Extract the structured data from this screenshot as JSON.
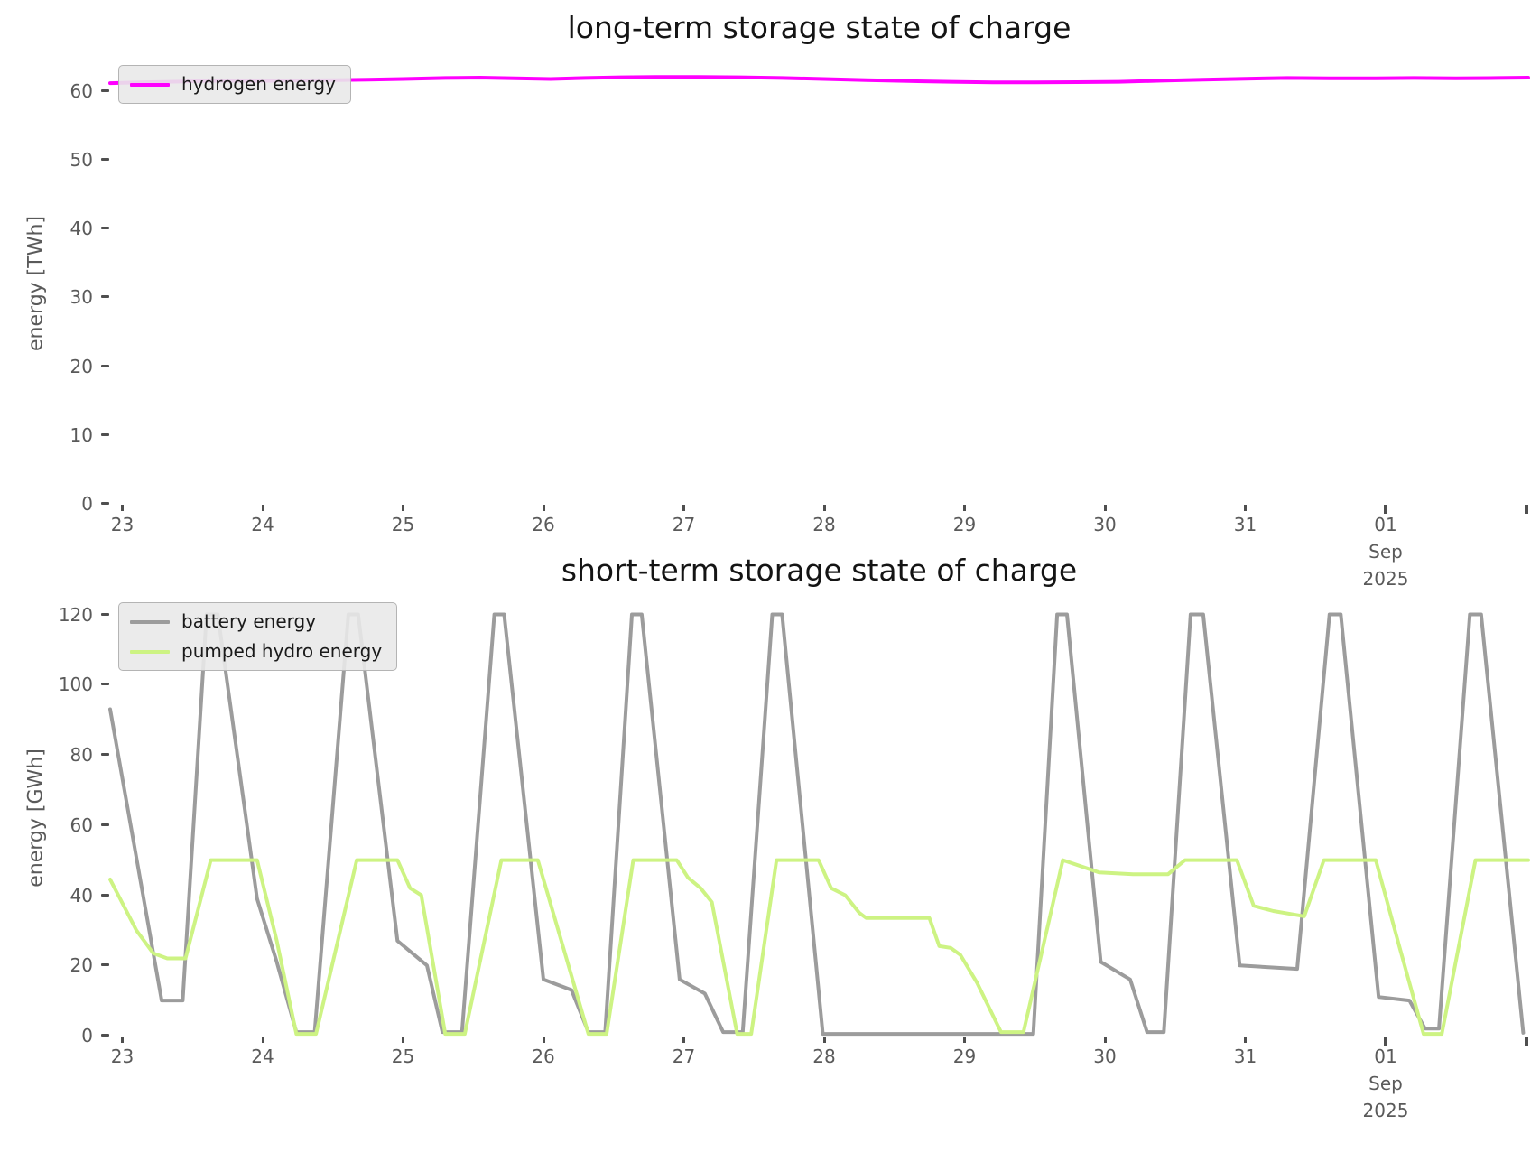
{
  "figure": {
    "background": "#ffffff",
    "text_color": "#141414",
    "tick_color": "#5a5a5a"
  },
  "chart_data": [
    {
      "id": "long",
      "type": "line",
      "title": "long-term storage state of charge",
      "ylabel": "energy [TWh]",
      "xlabel": "",
      "ylim": [
        0,
        64
      ],
      "xlim": [
        -0.087,
        10.016
      ],
      "grid": false,
      "legend_position": "upper-left",
      "yticks": [
        0,
        10,
        20,
        30,
        40,
        50,
        60
      ],
      "xticks": [
        {
          "label": "23"
        },
        {
          "label": "24"
        },
        {
          "label": "25"
        },
        {
          "label": "26"
        },
        {
          "label": "27"
        },
        {
          "label": "28"
        },
        {
          "label": "29"
        },
        {
          "label": "30"
        },
        {
          "label": "31"
        },
        {
          "label": "01",
          "sublabels": [
            "Sep",
            "2025"
          ],
          "major": true
        },
        {
          "label": "",
          "major": true
        }
      ],
      "x_unit": "days, 23 Aug 2025 to 02 Sep 2025",
      "series": [
        {
          "name": "hydrogen energy",
          "color": "#ff00ff",
          "line_width": 4,
          "points": [
            [
              -0.087,
              61.1
            ],
            [
              0.2,
              61.25
            ],
            [
              0.45,
              61.35
            ],
            [
              0.7,
              61.45
            ],
            [
              0.95,
              61.4
            ],
            [
              1.2,
              61.5
            ],
            [
              1.5,
              61.55
            ],
            [
              1.75,
              61.6
            ],
            [
              2.0,
              61.7
            ],
            [
              2.3,
              61.85
            ],
            [
              2.55,
              61.9
            ],
            [
              2.8,
              61.8
            ],
            [
              3.05,
              61.7
            ],
            [
              3.3,
              61.85
            ],
            [
              3.55,
              61.95
            ],
            [
              3.8,
              62.0
            ],
            [
              4.1,
              62.0
            ],
            [
              4.4,
              61.95
            ],
            [
              4.7,
              61.85
            ],
            [
              5.0,
              61.7
            ],
            [
              5.3,
              61.55
            ],
            [
              5.6,
              61.4
            ],
            [
              5.9,
              61.3
            ],
            [
              6.2,
              61.2
            ],
            [
              6.5,
              61.2
            ],
            [
              6.8,
              61.25
            ],
            [
              7.1,
              61.3
            ],
            [
              7.4,
              61.45
            ],
            [
              7.7,
              61.6
            ],
            [
              8.0,
              61.75
            ],
            [
              8.3,
              61.85
            ],
            [
              8.6,
              61.8
            ],
            [
              8.9,
              61.8
            ],
            [
              9.2,
              61.85
            ],
            [
              9.5,
              61.8
            ],
            [
              9.8,
              61.85
            ],
            [
              10.016,
              61.9
            ]
          ]
        }
      ]
    },
    {
      "id": "short",
      "type": "line",
      "title": "short-term storage state of charge",
      "ylabel": "energy [GWh]",
      "xlabel": "",
      "ylim": [
        0,
        124
      ],
      "xlim": [
        -0.087,
        10.016
      ],
      "grid": false,
      "legend_position": "upper-left",
      "yticks": [
        0,
        20,
        40,
        60,
        80,
        100,
        120
      ],
      "xticks": [
        {
          "label": "23"
        },
        {
          "label": "24"
        },
        {
          "label": "25"
        },
        {
          "label": "26"
        },
        {
          "label": "27"
        },
        {
          "label": "28"
        },
        {
          "label": "29"
        },
        {
          "label": "30"
        },
        {
          "label": "31"
        },
        {
          "label": "01",
          "sublabels": [
            "Sep",
            "2025"
          ],
          "major": true
        },
        {
          "label": "",
          "major": true
        }
      ],
      "x_unit": "days, 23 Aug 2025 to 02 Sep 2025",
      "series": [
        {
          "name": "battery energy",
          "color": "#9c9c9c",
          "line_width": 4,
          "points": [
            [
              -0.087,
              93
            ],
            [
              0.28,
              10
            ],
            [
              0.43,
              10
            ],
            [
              0.6,
              120
            ],
            [
              0.68,
              120
            ],
            [
              0.96,
              39
            ],
            [
              1.1,
              21
            ],
            [
              1.24,
              1
            ],
            [
              1.37,
              1
            ],
            [
              1.61,
              120
            ],
            [
              1.68,
              120
            ],
            [
              1.96,
              27
            ],
            [
              2.17,
              20
            ],
            [
              2.28,
              1
            ],
            [
              2.42,
              1
            ],
            [
              2.65,
              120
            ],
            [
              2.72,
              120
            ],
            [
              3.0,
              16
            ],
            [
              3.2,
              13
            ],
            [
              3.32,
              1
            ],
            [
              3.44,
              1
            ],
            [
              3.63,
              120
            ],
            [
              3.7,
              120
            ],
            [
              3.97,
              16
            ],
            [
              4.15,
              12
            ],
            [
              4.28,
              1
            ],
            [
              4.42,
              1
            ],
            [
              4.63,
              120
            ],
            [
              4.7,
              120
            ],
            [
              4.99,
              0.5
            ],
            [
              6.49,
              0.5
            ],
            [
              6.66,
              120
            ],
            [
              6.73,
              120
            ],
            [
              6.97,
              21
            ],
            [
              7.18,
              16
            ],
            [
              7.3,
              1
            ],
            [
              7.42,
              1
            ],
            [
              7.61,
              120
            ],
            [
              7.7,
              120
            ],
            [
              7.96,
              20
            ],
            [
              8.37,
              19
            ],
            [
              8.6,
              120
            ],
            [
              8.68,
              120
            ],
            [
              8.95,
              11
            ],
            [
              9.17,
              10
            ],
            [
              9.28,
              2
            ],
            [
              9.38,
              2
            ],
            [
              9.6,
              120
            ],
            [
              9.68,
              120
            ],
            [
              9.98,
              0.8
            ]
          ]
        },
        {
          "name": "pumped hydro energy",
          "color": "#cdf383",
          "line_width": 4,
          "points": [
            [
              -0.087,
              44.5
            ],
            [
              0.1,
              30
            ],
            [
              0.22,
              23.5
            ],
            [
              0.32,
              22
            ],
            [
              0.45,
              22
            ],
            [
              0.63,
              50
            ],
            [
              0.96,
              50
            ],
            [
              1.1,
              27
            ],
            [
              1.24,
              0.5
            ],
            [
              1.38,
              0.5
            ],
            [
              1.67,
              50
            ],
            [
              1.96,
              50
            ],
            [
              2.05,
              42
            ],
            [
              2.13,
              40
            ],
            [
              2.3,
              0.5
            ],
            [
              2.44,
              0.5
            ],
            [
              2.7,
              50
            ],
            [
              2.96,
              50
            ],
            [
              3.32,
              0.5
            ],
            [
              3.45,
              0.5
            ],
            [
              3.64,
              50
            ],
            [
              3.95,
              50
            ],
            [
              4.03,
              45
            ],
            [
              4.12,
              42
            ],
            [
              4.2,
              38
            ],
            [
              4.38,
              0.5
            ],
            [
              4.48,
              0.5
            ],
            [
              4.66,
              50
            ],
            [
              4.96,
              50
            ],
            [
              5.05,
              42
            ],
            [
              5.15,
              40
            ],
            [
              5.25,
              35
            ],
            [
              5.3,
              33.5
            ],
            [
              5.75,
              33.5
            ],
            [
              5.82,
              25.5
            ],
            [
              5.9,
              25
            ],
            [
              5.97,
              23
            ],
            [
              6.09,
              15
            ],
            [
              6.26,
              1
            ],
            [
              6.42,
              1
            ],
            [
              6.7,
              50
            ],
            [
              6.96,
              46.5
            ],
            [
              7.2,
              46
            ],
            [
              7.45,
              46
            ],
            [
              7.57,
              50
            ],
            [
              7.94,
              50
            ],
            [
              8.06,
              37
            ],
            [
              8.2,
              35.5
            ],
            [
              8.42,
              34
            ],
            [
              8.56,
              50
            ],
            [
              8.93,
              50
            ],
            [
              9.1,
              25
            ],
            [
              9.27,
              0.5
            ],
            [
              9.4,
              0.5
            ],
            [
              9.64,
              50
            ],
            [
              10.016,
              50
            ]
          ]
        }
      ]
    }
  ]
}
